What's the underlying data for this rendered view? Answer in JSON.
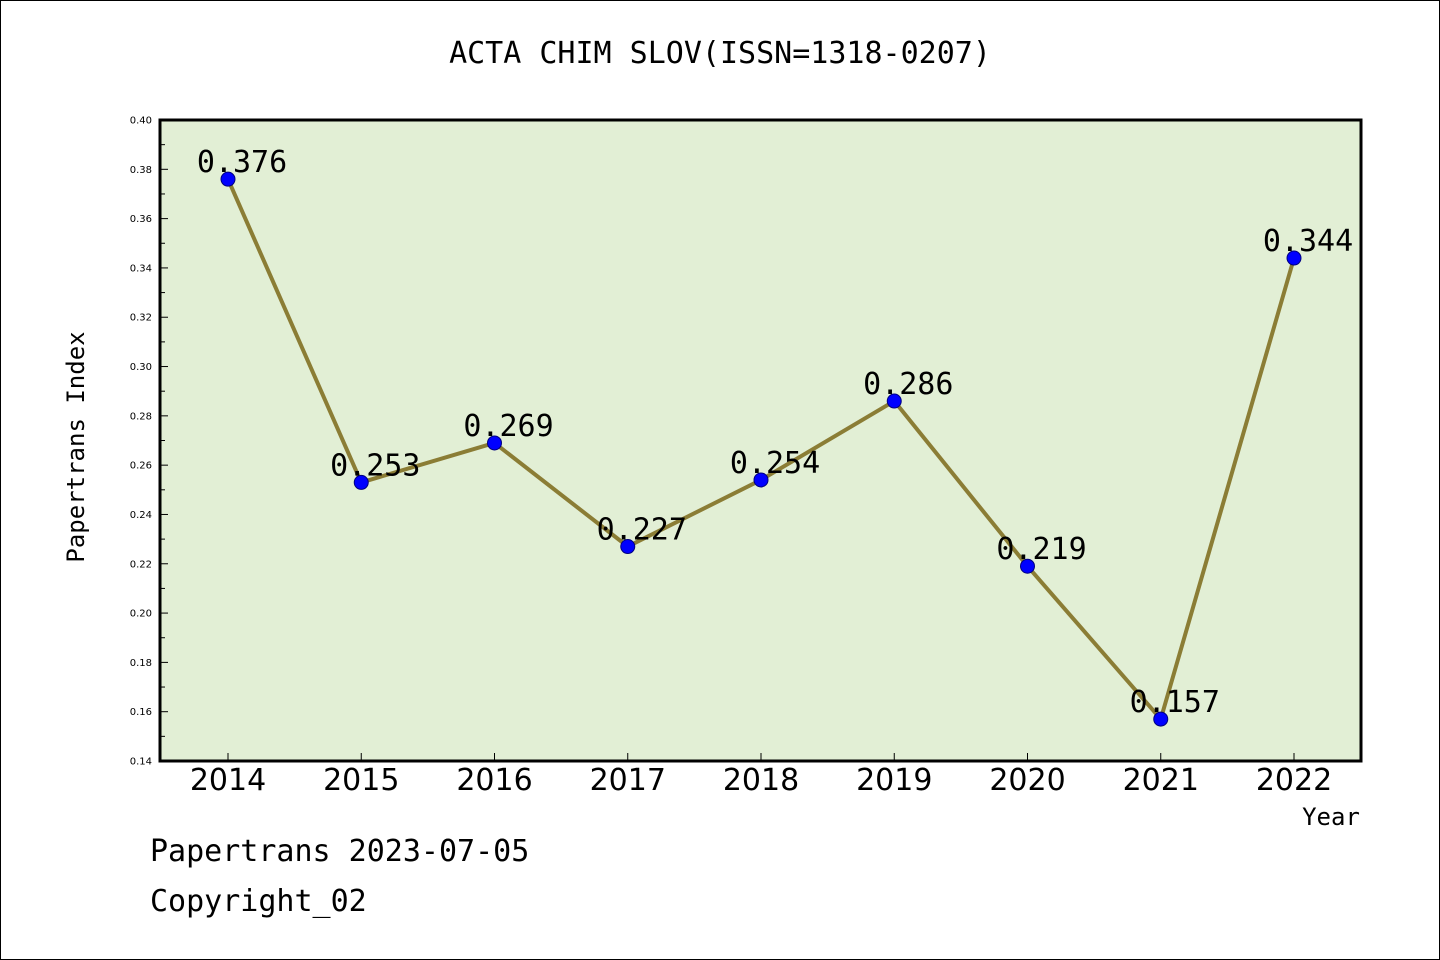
{
  "chart_data": {
    "type": "line",
    "title": "ACTA CHIM SLOV(ISSN=1318-0207)",
    "xlabel": "Year",
    "ylabel": "Papertrans Index",
    "categories": [
      "2014",
      "2015",
      "2016",
      "2017",
      "2018",
      "2019",
      "2020",
      "2021",
      "2022"
    ],
    "series": [
      {
        "values": [
          0.376,
          0.253,
          0.269,
          0.227,
          0.254,
          0.286,
          0.219,
          0.157,
          0.344
        ],
        "labels": [
          "0.376",
          "0.253",
          "0.269",
          "0.227",
          "0.254",
          "0.286",
          "0.219",
          "0.157",
          "0.344"
        ]
      }
    ],
    "ylim": [
      0.14,
      0.4
    ],
    "yticks": [
      "0.14",
      "0.16",
      "0.18",
      "0.20",
      "0.22",
      "0.24",
      "0.26",
      "0.28",
      "0.30",
      "0.32",
      "0.34",
      "0.36",
      "0.38",
      "0.40"
    ],
    "grid": false,
    "legend": "none",
    "colors": {
      "plot_background": "#e2efd5",
      "line": "#8b7d35",
      "marker": "#0000ff",
      "marker_edge": "#000080",
      "axis": "#000000"
    }
  },
  "footer": {
    "date_line": "Papertrans 2023-07-05",
    "copyright_line": "Copyright_02"
  }
}
